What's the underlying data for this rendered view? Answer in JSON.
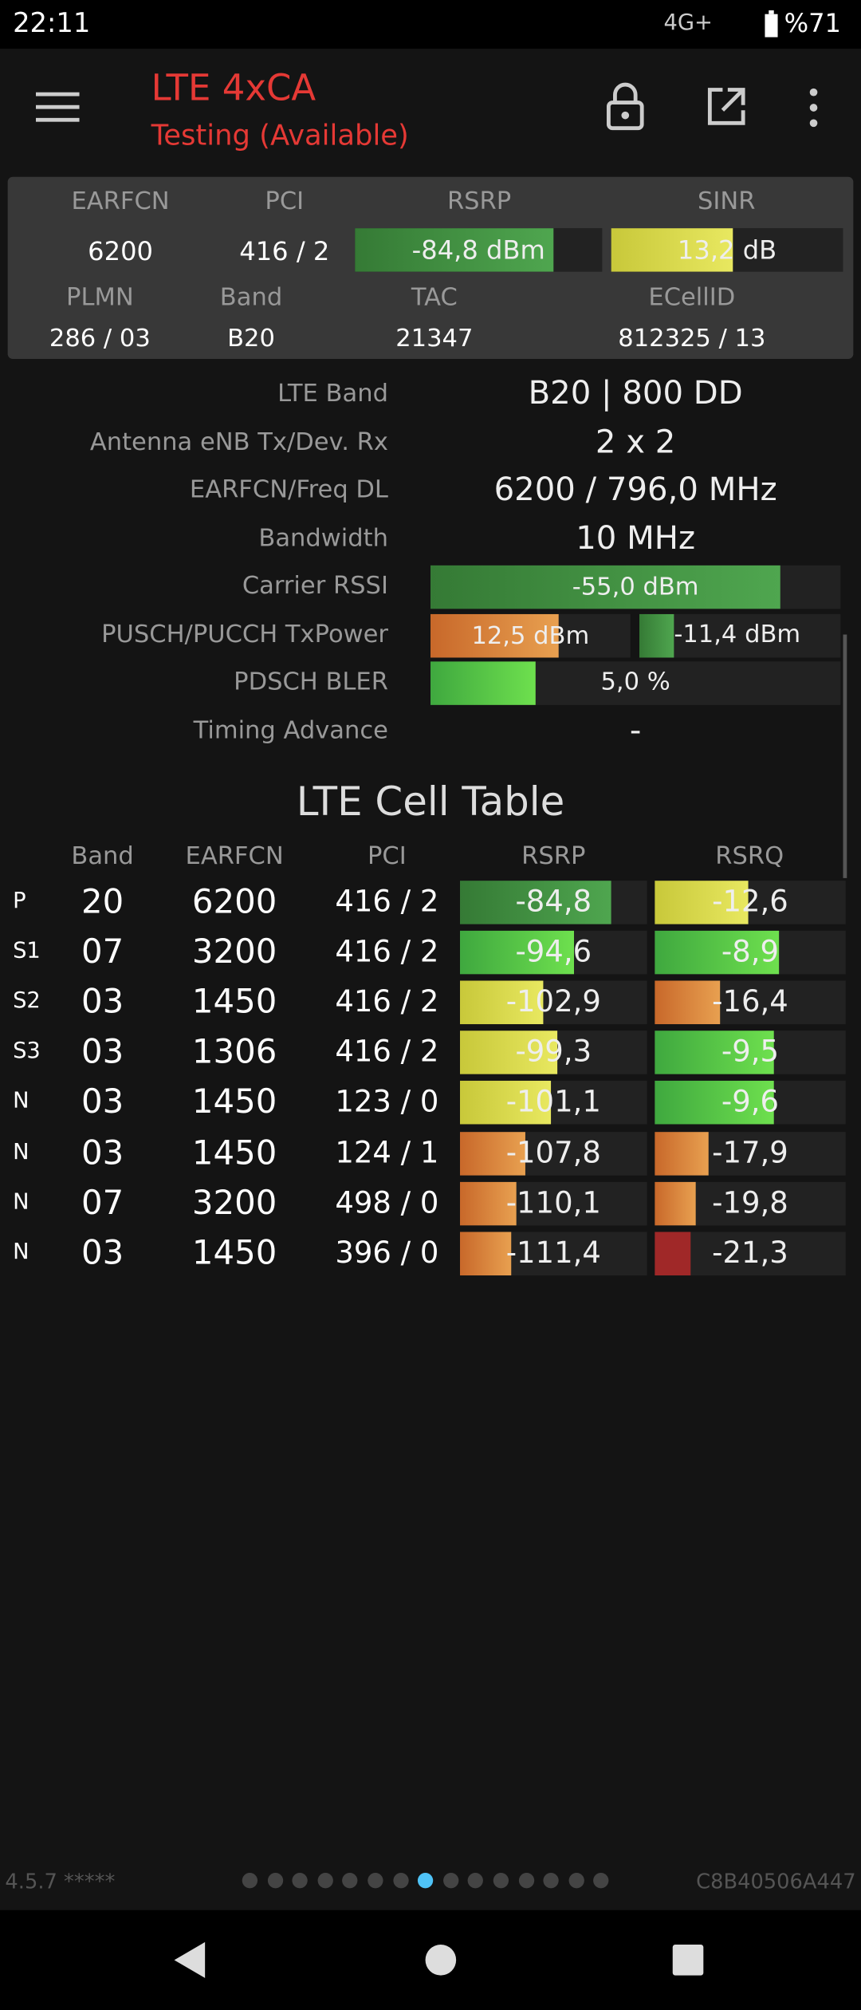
{
  "status": {
    "time": "22:11",
    "network": "4G+",
    "battery": "%71"
  },
  "header": {
    "title": "LTE 4xCA",
    "subtitle": "Testing (Available)"
  },
  "summary": {
    "labels": [
      "EARFCN",
      "PCI",
      "RSRP",
      "SINR",
      "PLMN",
      "Band",
      "TAC",
      "ECellID"
    ],
    "values": [
      "6200",
      "416 / 2",
      "-84,8 dBm",
      "13,2 dB",
      "286 / 03",
      "B20",
      "21347",
      "812325 / 13"
    ]
  },
  "details": [
    [
      "LTE Band",
      "B20 | 800 DD"
    ],
    [
      "Antenna eNB Tx/Dev. Rx",
      "2 x 2"
    ],
    [
      "EARFCN/Freq DL",
      "6200 / 796,0 MHz"
    ],
    [
      "Bandwidth",
      "10 MHz"
    ],
    [
      "Carrier RSSI",
      "-55,0 dBm"
    ],
    [
      "PUSCH/PUCCH TxPower",
      "12,5 dBm",
      "-11,4 dBm"
    ],
    [
      "PDSCH BLER",
      "5,0 %"
    ],
    [
      "Timing Advance",
      "-"
    ]
  ],
  "table": {
    "title": "LTE Cell Table",
    "columns": [
      "Band",
      "EARFCN",
      "PCI",
      "RSRP",
      "RSRQ"
    ],
    "rows": [
      [
        "P",
        "20",
        "6200",
        "416 / 2",
        "-84,8",
        "-12,6"
      ],
      [
        "S1",
        "07",
        "3200",
        "416 / 2",
        "-94,6",
        "-8,9"
      ],
      [
        "S2",
        "03",
        "1450",
        "416 / 2",
        "-102,9",
        "-16,4"
      ],
      [
        "S3",
        "03",
        "1306",
        "416 / 2",
        "-99,3",
        "-9,5"
      ],
      [
        "N",
        "03",
        "1450",
        "123 / 0",
        "-101,1",
        "-9,6"
      ],
      [
        "N",
        "03",
        "1450",
        "124 / 1",
        "-107,8",
        "-17,9"
      ],
      [
        "N",
        "07",
        "3200",
        "498 / 0",
        "-110,1",
        "-19,8"
      ],
      [
        "N",
        "03",
        "1450",
        "396 / 0",
        "-111,4",
        "-21,3"
      ]
    ]
  },
  "footer": {
    "version": "4.5.7 *****",
    "device_id": "C8B40506A447"
  }
}
